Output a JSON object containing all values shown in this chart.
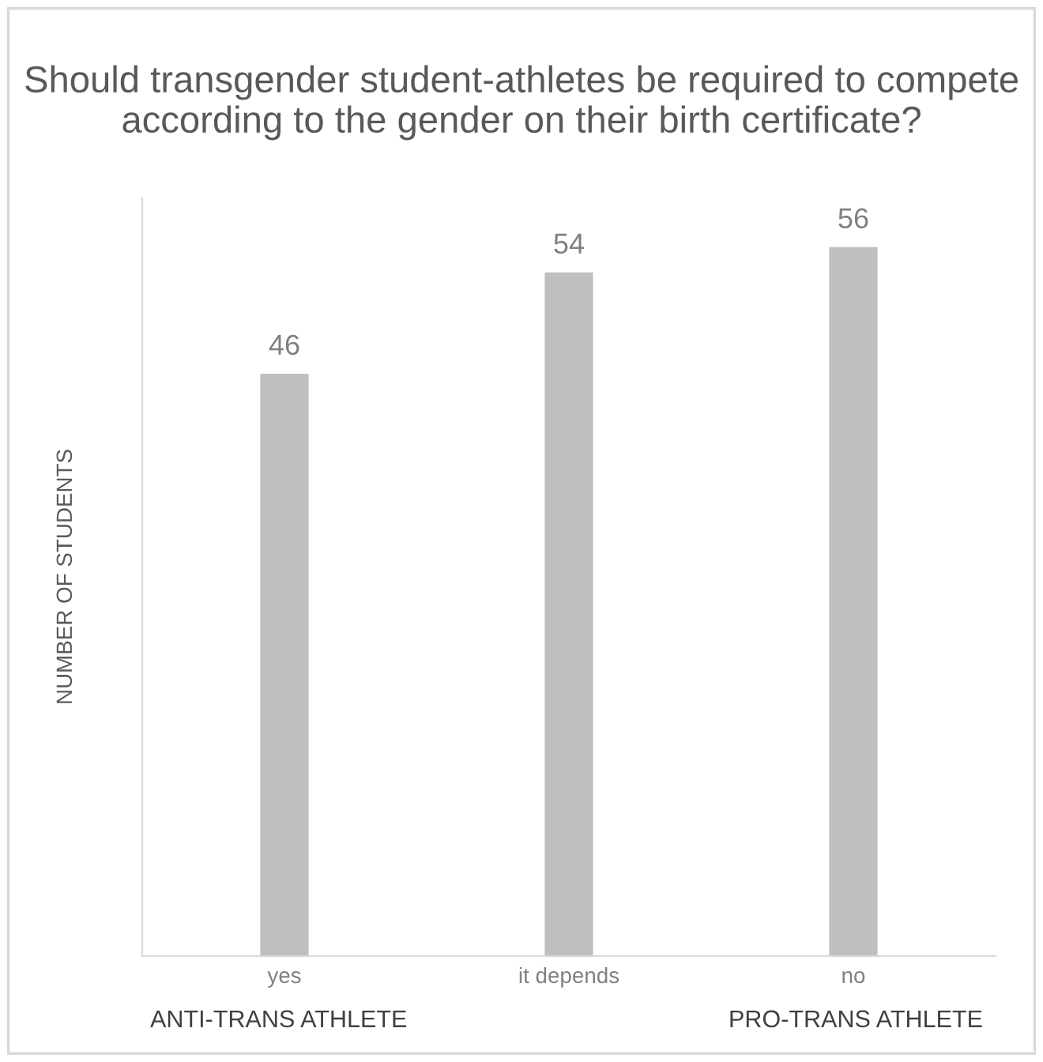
{
  "chart_data": {
    "type": "bar",
    "title": "Should transgender student-athletes be required to compete according to the gender on their birth certificate?",
    "ylabel": "NUMBER OF STUDENTS",
    "categories": [
      "yes",
      "it depends",
      "no"
    ],
    "values": [
      46,
      54,
      56
    ],
    "color": "#bfbfbf",
    "data_labels": true,
    "grid": false,
    "annotations": [
      "ANTI-TRANS ATHLETE",
      "PRO-TRANS ATHLETE"
    ]
  }
}
